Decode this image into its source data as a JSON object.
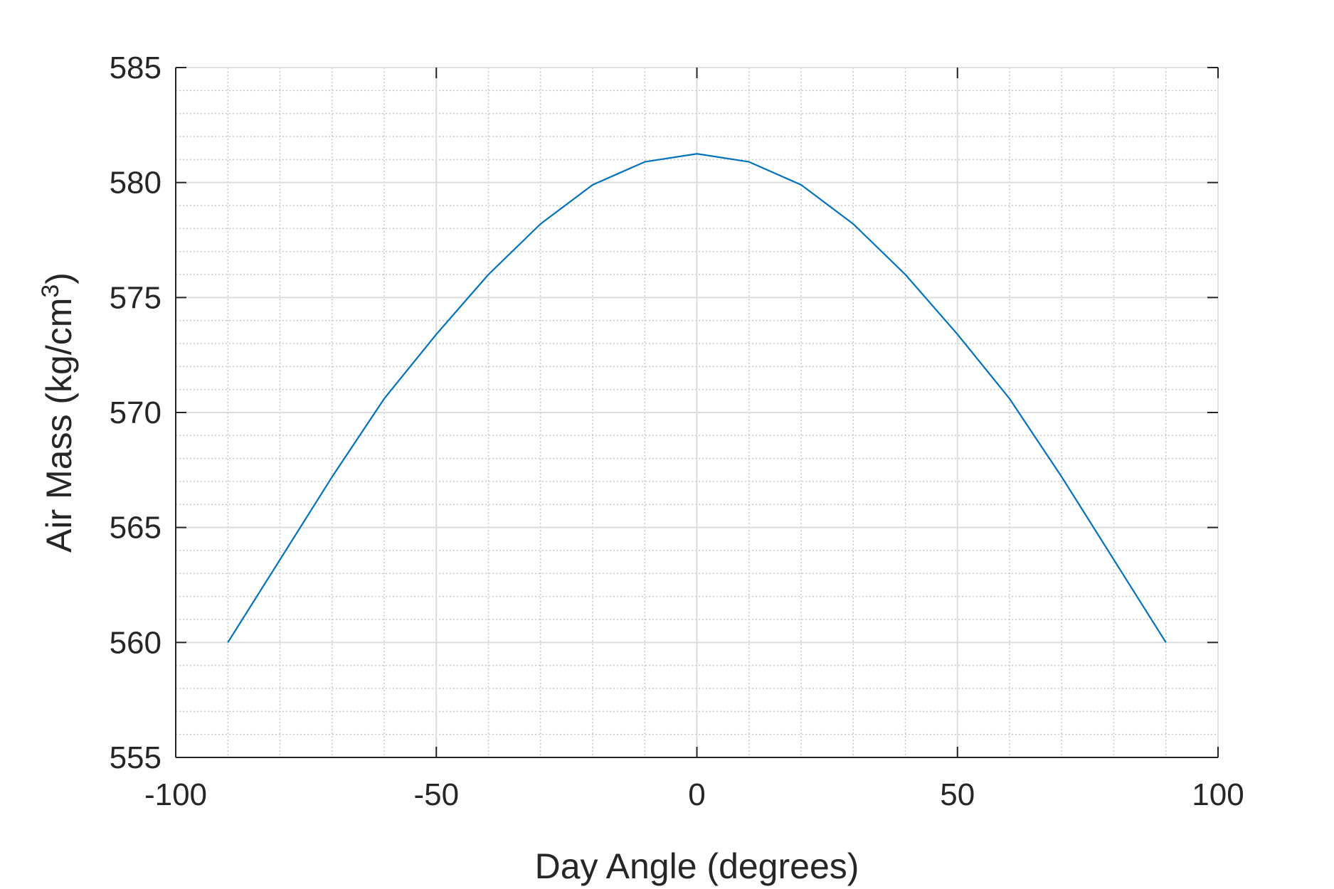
{
  "chart_data": {
    "type": "line",
    "xlabel": "Day Angle (degrees)",
    "ylabel": {
      "prefix": "Air Mass (kg/cm",
      "superscript": "3",
      "suffix": ")"
    },
    "xlim": [
      -100,
      100
    ],
    "ylim": [
      555,
      585
    ],
    "xticks": [
      -100,
      -50,
      0,
      50,
      100
    ],
    "yticks": [
      555,
      560,
      565,
      570,
      575,
      580,
      585
    ],
    "xtick_labels": [
      "-100",
      "-50",
      "0",
      "50",
      "100"
    ],
    "ytick_labels": [
      "555",
      "560",
      "565",
      "570",
      "575",
      "580",
      "585"
    ],
    "grid": true,
    "minor_grid": true,
    "line_color": "#0072BD",
    "series": [
      {
        "x": [
          -90,
          -80,
          -70,
          -60,
          -50,
          -40,
          -30,
          -20,
          -10,
          0,
          10,
          20,
          30,
          40,
          50,
          60,
          70,
          80,
          90
        ],
        "y": [
          560.0,
          563.6,
          567.2,
          570.6,
          573.4,
          576.0,
          578.2,
          579.9,
          580.9,
          581.25,
          580.9,
          579.9,
          578.2,
          576.0,
          573.4,
          570.6,
          567.2,
          563.6,
          560.0
        ]
      }
    ]
  }
}
